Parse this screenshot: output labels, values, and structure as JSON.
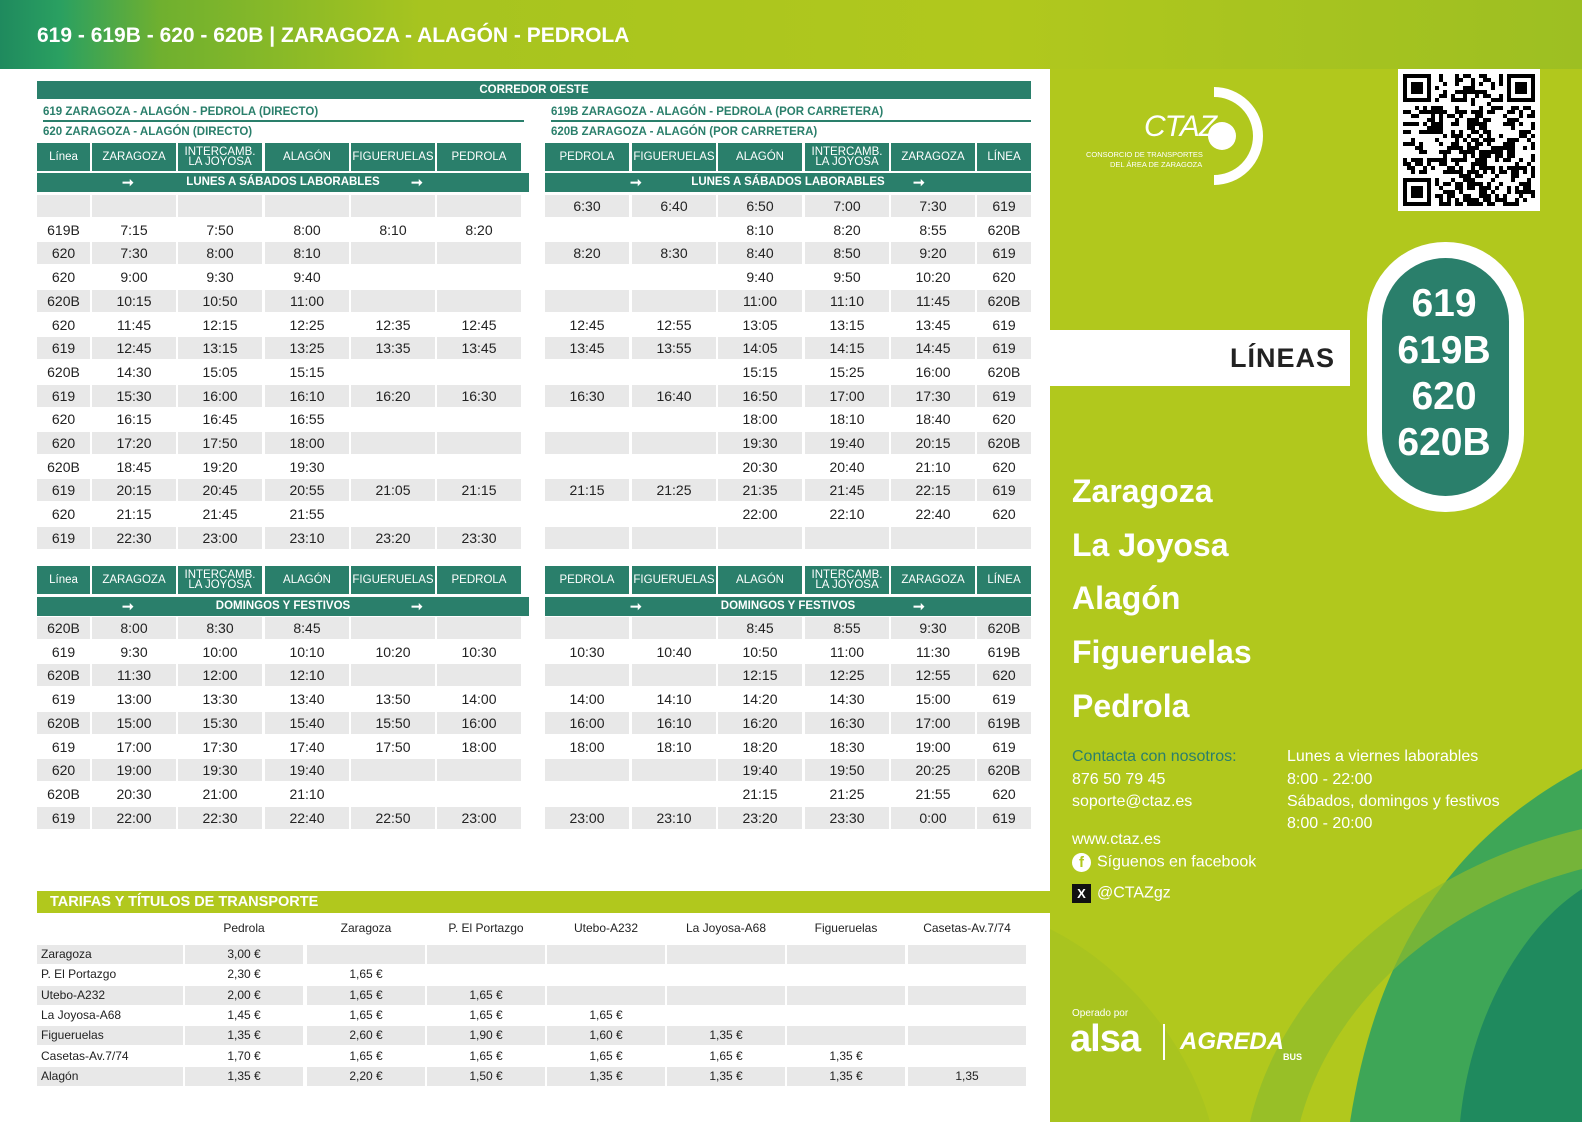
{
  "header": {
    "title": "619 - 619B - 620 - 620B | ZARAGOZA - ALAGÓN - PEDROLA"
  },
  "corridor": "CORREDOR OESTE",
  "routes": {
    "r619": "619 ZARAGOZA - ALAGÓN - PEDROLA (DIRECTO)",
    "r620": "620 ZARAGOZA - ALAGÓN (DIRECTO)",
    "r619b": "619B ZARAGOZA - ALAGÓN - PEDROLA (POR CARRETERA)",
    "r620b": "620B ZARAGOZA - ALAGÓN (POR CARRETERA)"
  },
  "cols_out": [
    "Línea",
    "ZARAGOZA",
    "INTERCAMB. LA JOYOSA",
    "ALAGÓN",
    "FIGUERUELAS",
    "PEDROLA"
  ],
  "cols_ret": [
    "PEDROLA",
    "FIGUERUELAS",
    "ALAGÓN",
    "INTERCAMB. LA JOYOSA",
    "ZARAGOZA",
    "LÍNEA"
  ],
  "weekday_label": "LUNES A SÁBADOS LABORABLES",
  "holiday_label": "DOMINGOS Y FESTIVOS",
  "weekday_out": [
    [
      "",
      "",
      "",
      "",
      "",
      ""
    ],
    [
      "619B",
      "7:15",
      "7:50",
      "8:00",
      "8:10",
      "8:20"
    ],
    [
      "620",
      "7:30",
      "8:00",
      "8:10",
      "",
      ""
    ],
    [
      "620",
      "9:00",
      "9:30",
      "9:40",
      "",
      ""
    ],
    [
      "620B",
      "10:15",
      "10:50",
      "11:00",
      "",
      ""
    ],
    [
      "620",
      "11:45",
      "12:15",
      "12:25",
      "12:35",
      "12:45"
    ],
    [
      "619",
      "12:45",
      "13:15",
      "13:25",
      "13:35",
      "13:45"
    ],
    [
      "620B",
      "14:30",
      "15:05",
      "15:15",
      "",
      ""
    ],
    [
      "619",
      "15:30",
      "16:00",
      "16:10",
      "16:20",
      "16:30"
    ],
    [
      "620",
      "16:15",
      "16:45",
      "16:55",
      "",
      ""
    ],
    [
      "620",
      "17:20",
      "17:50",
      "18:00",
      "",
      ""
    ],
    [
      "620B",
      "18:45",
      "19:20",
      "19:30",
      "",
      ""
    ],
    [
      "619",
      "20:15",
      "20:45",
      "20:55",
      "21:05",
      "21:15"
    ],
    [
      "620",
      "21:15",
      "21:45",
      "21:55",
      "",
      ""
    ],
    [
      "619",
      "22:30",
      "23:00",
      "23:10",
      "23:20",
      "23:30"
    ]
  ],
  "weekday_ret": [
    [
      "6:30",
      "6:40",
      "6:50",
      "7:00",
      "7:30",
      "619"
    ],
    [
      "",
      "",
      "8:10",
      "8:20",
      "8:55",
      "620B"
    ],
    [
      "8:20",
      "8:30",
      "8:40",
      "8:50",
      "9:20",
      "619"
    ],
    [
      "",
      "",
      "9:40",
      "9:50",
      "10:20",
      "620"
    ],
    [
      "",
      "",
      "11:00",
      "11:10",
      "11:45",
      "620B"
    ],
    [
      "12:45",
      "12:55",
      "13:05",
      "13:15",
      "13:45",
      "619"
    ],
    [
      "13:45",
      "13:55",
      "14:05",
      "14:15",
      "14:45",
      "619"
    ],
    [
      "",
      "",
      "15:15",
      "15:25",
      "16:00",
      "620B"
    ],
    [
      "16:30",
      "16:40",
      "16:50",
      "17:00",
      "17:30",
      "619"
    ],
    [
      "",
      "",
      "18:00",
      "18:10",
      "18:40",
      "620"
    ],
    [
      "",
      "",
      "19:30",
      "19:40",
      "20:15",
      "620B"
    ],
    [
      "",
      "",
      "20:30",
      "20:40",
      "21:10",
      "620"
    ],
    [
      "21:15",
      "21:25",
      "21:35",
      "21:45",
      "22:15",
      "619"
    ],
    [
      "",
      "",
      "22:00",
      "22:10",
      "22:40",
      "620"
    ],
    [
      "",
      "",
      "",
      "",
      "",
      ""
    ]
  ],
  "holiday_out": [
    [
      "620B",
      "8:00",
      "8:30",
      "8:45",
      "",
      ""
    ],
    [
      "619",
      "9:30",
      "10:00",
      "10:10",
      "10:20",
      "10:30"
    ],
    [
      "620B",
      "11:30",
      "12:00",
      "12:10",
      "",
      ""
    ],
    [
      "619",
      "13:00",
      "13:30",
      "13:40",
      "13:50",
      "14:00"
    ],
    [
      "620B",
      "15:00",
      "15:30",
      "15:40",
      "15:50",
      "16:00"
    ],
    [
      "619",
      "17:00",
      "17:30",
      "17:40",
      "17:50",
      "18:00"
    ],
    [
      "620",
      "19:00",
      "19:30",
      "19:40",
      "",
      ""
    ],
    [
      "620B",
      "20:30",
      "21:00",
      "21:10",
      "",
      ""
    ],
    [
      "619",
      "22:00",
      "22:30",
      "22:40",
      "22:50",
      "23:00"
    ]
  ],
  "holiday_ret": [
    [
      "",
      "",
      "8:45",
      "8:55",
      "9:30",
      "620B"
    ],
    [
      "10:30",
      "10:40",
      "10:50",
      "11:00",
      "11:30",
      "619B"
    ],
    [
      "",
      "",
      "12:15",
      "12:25",
      "12:55",
      "620"
    ],
    [
      "14:00",
      "14:10",
      "14:20",
      "14:30",
      "15:00",
      "619"
    ],
    [
      "16:00",
      "16:10",
      "16:20",
      "16:30",
      "17:00",
      "619B"
    ],
    [
      "18:00",
      "18:10",
      "18:20",
      "18:30",
      "19:00",
      "619"
    ],
    [
      "",
      "",
      "19:40",
      "19:50",
      "20:25",
      "620B"
    ],
    [
      "",
      "",
      "21:15",
      "21:25",
      "21:55",
      "620"
    ],
    [
      "23:00",
      "23:10",
      "23:20",
      "23:30",
      "0:00",
      "619"
    ]
  ],
  "fares": {
    "title": "TARIFAS Y TÍTULOS DE TRANSPORTE",
    "cols": [
      "Pedrola",
      "Zaragoza",
      "P. El Portazgo",
      "Utebo-A232",
      "La Joyosa-A68",
      "Figueruelas",
      "Casetas-Av.7/74"
    ],
    "rows": [
      {
        "name": "Zaragoza",
        "vals": [
          "3,00 €",
          "",
          "",
          "",
          "",
          "",
          ""
        ]
      },
      {
        "name": "P. El Portazgo",
        "vals": [
          "2,30 €",
          "1,65 €",
          "",
          "",
          "",
          "",
          ""
        ]
      },
      {
        "name": "Utebo-A232",
        "vals": [
          "2,00 €",
          "1,65 €",
          "1,65 €",
          "",
          "",
          "",
          ""
        ]
      },
      {
        "name": "La Joyosa-A68",
        "vals": [
          "1,45 €",
          "1,65 €",
          "1,65 €",
          "1,65 €",
          "",
          "",
          ""
        ]
      },
      {
        "name": "Figueruelas",
        "vals": [
          "1,35 €",
          "2,60 €",
          "1,90 €",
          "1,60 €",
          "1,35 €",
          "",
          ""
        ]
      },
      {
        "name": "Casetas-Av.7/74",
        "vals": [
          "1,70 €",
          "1,65 €",
          "1,65 €",
          "1,65 €",
          "1,65 €",
          "1,35 €",
          ""
        ]
      },
      {
        "name": "Alagón",
        "vals": [
          "1,35 €",
          "2,20 €",
          "1,50 €",
          "1,35 €",
          "1,35 €",
          "1,35 €",
          "1,35"
        ]
      }
    ]
  },
  "brand": {
    "logo_text": "CTAZ",
    "logo_sub1": "CONSORCIO DE TRANSPORTES",
    "logo_sub2": "DEL ÁREA DE ZARAGOZA"
  },
  "lineas_label": "LÍNEAS",
  "lines": [
    "619",
    "619B",
    "620",
    "620B"
  ],
  "stops": [
    "Zaragoza",
    "La Joyosa",
    "Alagón",
    "Figueruelas",
    "Pedrola"
  ],
  "contact": {
    "label": "Contacta con nosotros:",
    "phone": "876 50 79 45",
    "email": "soporte@ctaz.es",
    "hours1": "Lunes a viernes laborables",
    "hours1_time": "8:00 - 22:00",
    "hours2": "Sábados, domingos y festivos",
    "hours2_time": "8:00 - 20:00",
    "web": "www.ctaz.es",
    "facebook": "Síguenos en facebook",
    "x": "@CTAZgz"
  },
  "operator": {
    "label": "Operado por",
    "alsa": "alsa",
    "agreda": "AGREDA",
    "bus": "BUS"
  },
  "colors": {
    "teal": "#2a7f6b",
    "lime": "#b1c81d",
    "grey_row": "#e8e8e8"
  }
}
